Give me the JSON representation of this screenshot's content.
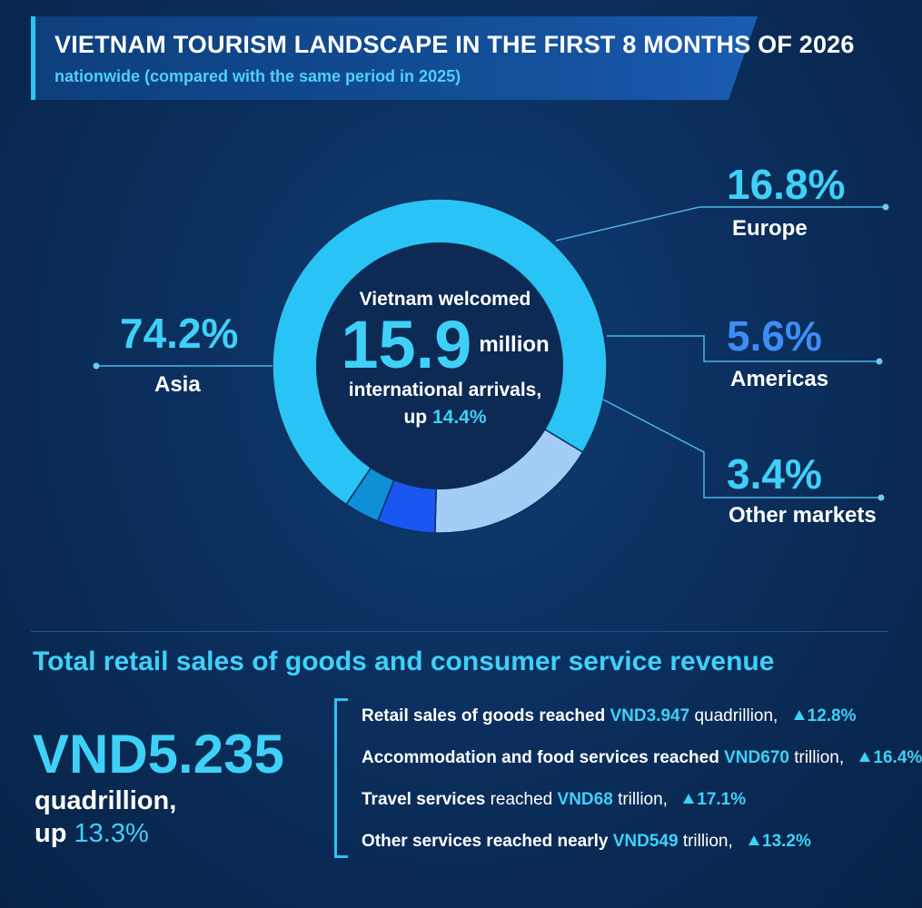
{
  "header": {
    "title": "VIETNAM TOURISM LANDSCAPE IN THE FIRST 8 MONTHS OF 2026",
    "subtitle": "nationwide (compared with the same period in 2025)"
  },
  "chart_data": {
    "type": "pie",
    "variant": "donut",
    "categories": [
      "Asia",
      "Europe",
      "Americas",
      "Other markets"
    ],
    "values": [
      74.2,
      16.8,
      5.6,
      3.4
    ],
    "value_labels": [
      "74.2%",
      "16.8%",
      "5.6%",
      "3.4%"
    ],
    "colors": [
      "#29c3f5",
      "#a3cdf7",
      "#1a56f0",
      "#0f8fd6"
    ],
    "center": {
      "intro": "Vietnam welcomed",
      "value": "15.9",
      "unit": "million",
      "line": "international arrivals,",
      "up_prefix": "up",
      "up_value": "14.4%"
    }
  },
  "retail": {
    "section_title": "Total retail sales of goods and consumer service revenue",
    "total_value": "VND5.235",
    "total_unit": "quadrillion,",
    "total_up_prefix": "up",
    "total_up_value": "13.3%",
    "items": [
      {
        "label": "Retail sales of goods reached",
        "value": "VND3.947",
        "unit": "quadrillion,",
        "change": "12.8%"
      },
      {
        "label": "Accommodation and food services reached",
        "value": "VND670",
        "unit": "trillion,",
        "change": "16.4%"
      },
      {
        "label": "Travel services",
        "label2": "reached",
        "value": "VND68",
        "unit": "trillion,",
        "change": "17.1%"
      },
      {
        "label": "Other services reached nearly",
        "value": "VND549",
        "unit": "trillion,",
        "change": "13.2%"
      }
    ]
  },
  "colors": {
    "accent": "#3fd0f8",
    "background": "#0b2f5e",
    "europe_label": "#3fd0f8",
    "americas_label": "#3d8df5",
    "other_label": "#3fd0f8"
  }
}
